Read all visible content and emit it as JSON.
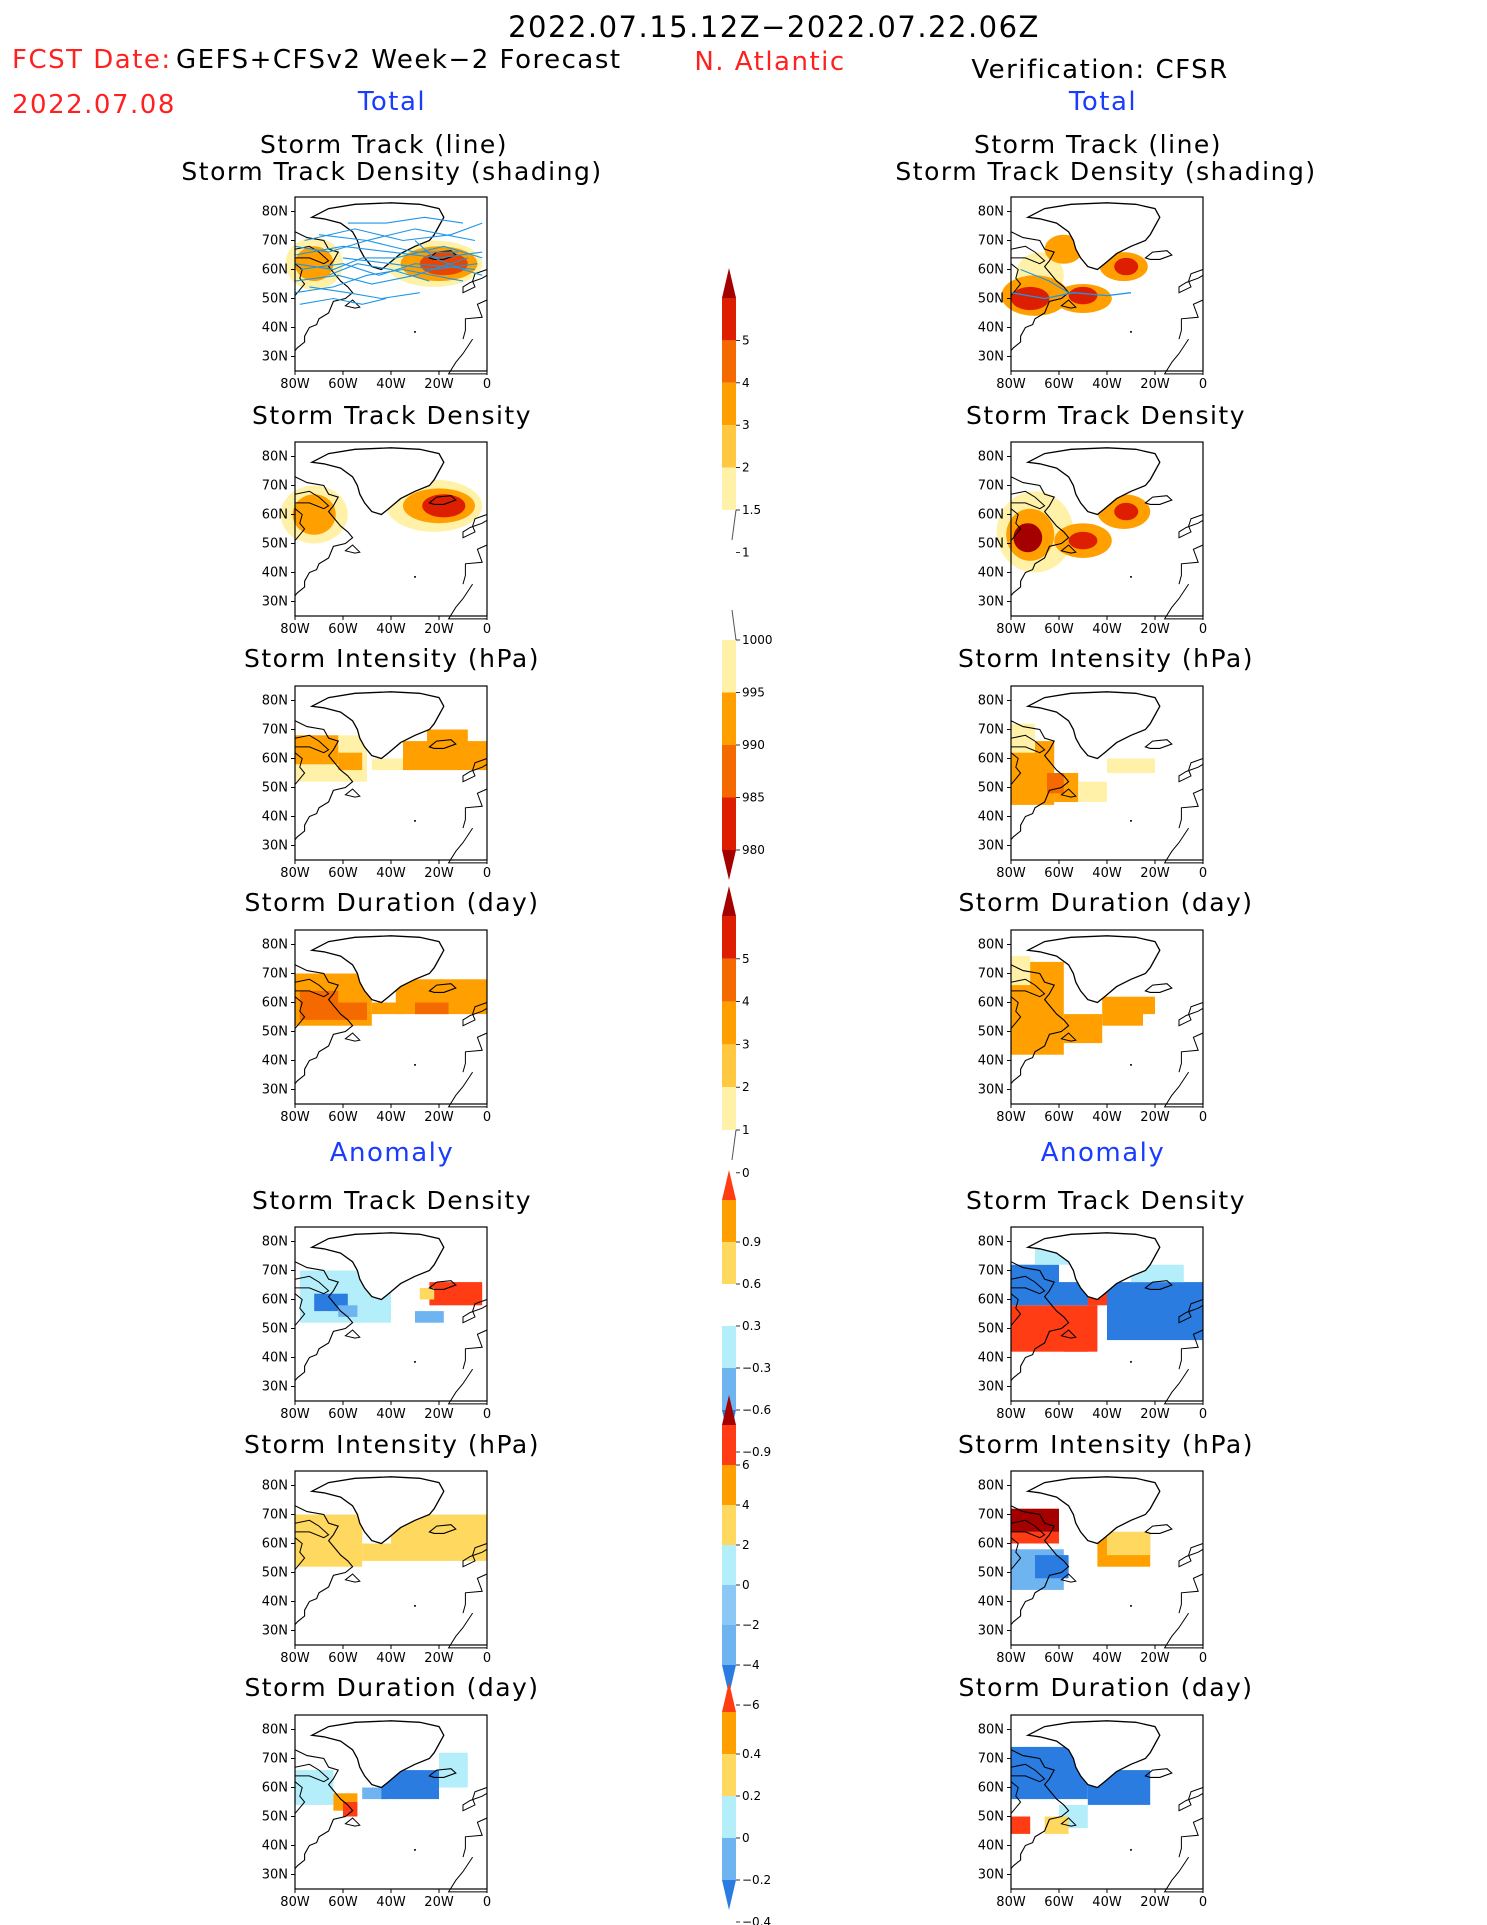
{
  "header": {
    "period": "2022.07.15.12Z−2022.07.22.06Z",
    "region": "N. Atlantic",
    "fcst_label": "FCST Date:",
    "fcst_date": "2022.07.08",
    "forecast_model": "GEFS+CFSv2 Week−2 Forecast",
    "verification": "Verification: CFSR"
  },
  "sections": {
    "total_left": "Total",
    "total_right": "Total",
    "anomaly_left": "Anomaly",
    "anomaly_right": "Anomaly"
  },
  "panel_titles": {
    "track_line": "Storm Track (line)",
    "track_density_shading": "Storm Track Density (shading)",
    "track_density": "Storm Track Density",
    "intensity": "Storm Intensity (hPa)",
    "duration": "Storm Duration (day)"
  },
  "axes": {
    "lat_ticks": [
      "80N",
      "70N",
      "60N",
      "50N",
      "40N",
      "30N"
    ],
    "lon_ticks": [
      "80W",
      "60W",
      "40W",
      "20W",
      "0"
    ]
  },
  "colorbars": [
    {
      "name": "total-density",
      "labels": [
        "5",
        "4",
        "3",
        "2",
        "1.5",
        "1"
      ],
      "colors": [
        "#a50000",
        "#dd1e00",
        "#f56a00",
        "#ffa000",
        "#ffc840",
        "#fff2a8"
      ]
    },
    {
      "name": "total-intensity",
      "labels": [
        "1000",
        "995",
        "990",
        "985",
        "980"
      ],
      "colors": [
        "#fff2a8",
        "#ffa000",
        "#f56a00",
        "#dd1e00",
        "#a50000"
      ]
    },
    {
      "name": "total-duration",
      "labels": [
        "5",
        "4",
        "3",
        "2",
        "1",
        "0"
      ],
      "colors": [
        "#a50000",
        "#dd1e00",
        "#f56a00",
        "#ffa000",
        "#ffc840",
        "#fff2a8"
      ]
    },
    {
      "name": "anomaly-density",
      "labels": [
        "0.9",
        "0.6",
        "0.3",
        "−0.3",
        "−0.6",
        "−0.9"
      ],
      "colors": [
        "#ff3c14",
        "#ffa000",
        "#ffd860",
        "#ffffff",
        "#b4eefa",
        "#6eb4f0",
        "#2a7ce0"
      ]
    },
    {
      "name": "anomaly-intensity",
      "labels": [
        "6",
        "4",
        "2",
        "0",
        "−2",
        "−4",
        "−6"
      ],
      "colors": [
        "#a50000",
        "#ff3c14",
        "#ffa000",
        "#ffd860",
        "#b4eefa",
        "#8cc8f5",
        "#6eb4f0",
        "#2a7ce0"
      ]
    },
    {
      "name": "anomaly-duration",
      "labels": [
        "0.4",
        "0.2",
        "0",
        "−0.2",
        "−0.4"
      ],
      "colors": [
        "#ff3c14",
        "#ffa000",
        "#ffd860",
        "#b4eefa",
        "#6eb4f0",
        "#2a7ce0"
      ]
    }
  ],
  "palette": {
    "track_lines": "#1e96e6",
    "title_red": "#ff2020",
    "title_blue": "#1a3cff"
  }
}
